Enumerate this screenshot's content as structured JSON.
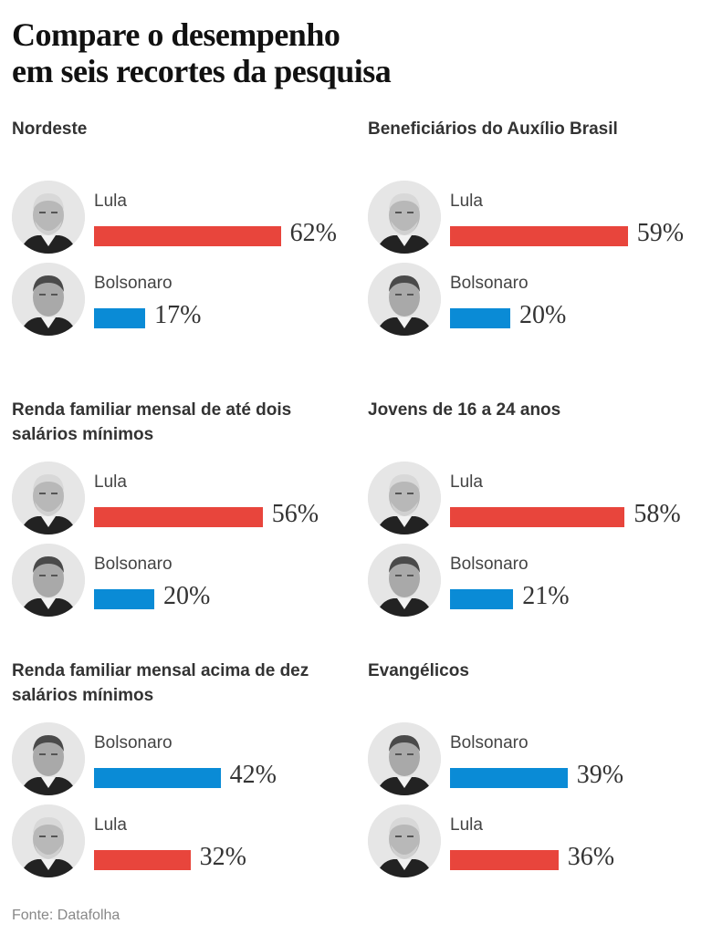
{
  "title": [
    "Compare o desempenho",
    "em seis recortes da pesquisa"
  ],
  "source": "Fonte: Datafolha",
  "colors": {
    "Lula": "#e8453c",
    "Bolsonaro": "#0a8bd6"
  },
  "chart_data": {
    "type": "bar",
    "orientation": "horizontal",
    "unit": "%",
    "title": "Compare o desempenho em seis recortes da pesquisa",
    "panels": [
      {
        "title": "Nordeste",
        "series": [
          {
            "name": "Lula",
            "value": 62
          },
          {
            "name": "Bolsonaro",
            "value": 17
          }
        ]
      },
      {
        "title": "Beneficiários do Auxílio Brasil",
        "series": [
          {
            "name": "Lula",
            "value": 59
          },
          {
            "name": "Bolsonaro",
            "value": 20
          }
        ]
      },
      {
        "title": "Renda familiar mensal de até dois salários mínimos",
        "series": [
          {
            "name": "Lula",
            "value": 56
          },
          {
            "name": "Bolsonaro",
            "value": 20
          }
        ]
      },
      {
        "title": "Jovens de 16 a 24 anos",
        "series": [
          {
            "name": "Lula",
            "value": 58
          },
          {
            "name": "Bolsonaro",
            "value": 21
          }
        ]
      },
      {
        "title": "Renda familiar mensal acima de dez salários mínimos",
        "series": [
          {
            "name": "Bolsonaro",
            "value": 42
          },
          {
            "name": "Lula",
            "value": 32
          }
        ]
      },
      {
        "title": "Evangélicos",
        "series": [
          {
            "name": "Bolsonaro",
            "value": 39
          },
          {
            "name": "Lula",
            "value": 36
          }
        ]
      }
    ],
    "source": "Fonte: Datafolha"
  }
}
